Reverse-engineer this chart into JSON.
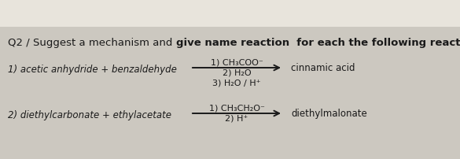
{
  "bg_color": "#ccc8c0",
  "text_color": "#1a1a1a",
  "title_part1": "Q2 / Suggest a mechanism and ",
  "title_part2": "give name reaction",
  "title_part3": "  for each the following reactions:",
  "title_fontsize": 9.5,
  "reaction1_label": "1) acetic anhydride + benzaldehyde",
  "reaction1_step1": "1) CH₃COO⁻",
  "reaction1_step2": "2) H₂O",
  "reaction1_step3": "3) H₂O / H⁺",
  "reaction1_product": "cinnamic acid",
  "reaction2_label": "2) diethylcarbonate + ethylacetate",
  "reaction2_step1": "1) CH₃CH₂O⁻",
  "reaction2_step2": "2) H⁺",
  "reaction2_product": "diethylmalonate",
  "arrow_color": "#1a1a1a",
  "label_fontsize": 8.5,
  "step_fontsize": 8.0,
  "product_fontsize": 8.5
}
